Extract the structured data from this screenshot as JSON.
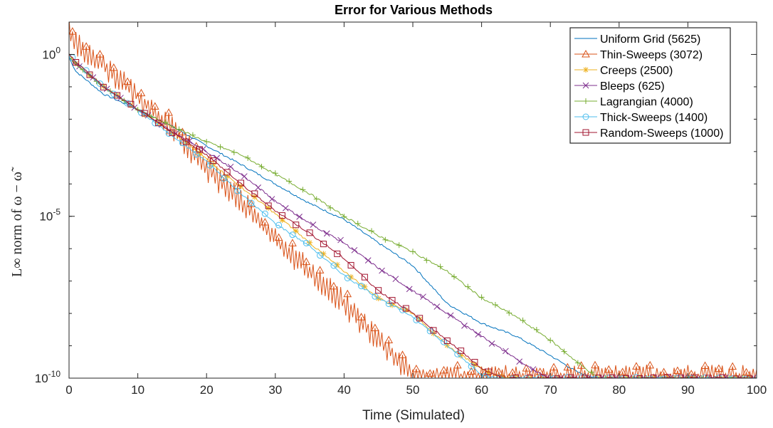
{
  "chart_data": {
    "type": "line",
    "title": "Error for Various Methods",
    "xlabel": "Time (Simulated)",
    "ylabel": "L∞ norm of ω − ω̃",
    "xlim": [
      0,
      100
    ],
    "ylim": [
      1e-10,
      10
    ],
    "yscale": "log",
    "xticks": [
      "0",
      "10",
      "20",
      "30",
      "40",
      "50",
      "60",
      "70",
      "80",
      "90",
      "100"
    ],
    "yticks": [
      {
        "value": 1,
        "base": "10",
        "exp": "0"
      },
      {
        "value": 1e-05,
        "base": "10",
        "exp": "-5"
      },
      {
        "value": 1e-10,
        "base": "10",
        "exp": "-10"
      }
    ],
    "grid": false,
    "legend_position": "top-right",
    "series": [
      {
        "name": "Uniform Grid (5625)",
        "color": "#0072BD",
        "marker": "none",
        "x": [
          0,
          1,
          5,
          10,
          15,
          20,
          25,
          30,
          35,
          40,
          45,
          50,
          55,
          60,
          65,
          70,
          74,
          77,
          80,
          100
        ],
        "y": [
          0.8,
          0.3,
          0.06,
          0.02,
          0.006,
          0.0015,
          0.0004,
          0.0001,
          2.5e-05,
          8e-06,
          1.5e-06,
          3e-07,
          2e-08,
          5e-09,
          2e-09,
          5e-10,
          1.5e-10,
          1e-10,
          1e-10,
          1e-10
        ]
      },
      {
        "name": "Thin-Sweeps (3072)",
        "color": "#D95319",
        "marker": "triangle",
        "noise": 0.3,
        "x": [
          0,
          1,
          5,
          10,
          15,
          20,
          25,
          30,
          35,
          40,
          45,
          50,
          52,
          55,
          60,
          100
        ],
        "y": [
          5,
          2,
          0.5,
          0.05,
          0.005,
          0.0003,
          3e-05,
          2e-06,
          2e-07,
          2e-08,
          1.5e-09,
          1.3e-10,
          1e-10,
          1e-10,
          1e-10,
          1e-10
        ]
      },
      {
        "name": "Creeps (2500)",
        "color": "#EDB120",
        "marker": "asterisk",
        "x": [
          0,
          1,
          5,
          10,
          15,
          20,
          25,
          30,
          35,
          40,
          45,
          50,
          55,
          60,
          62,
          65,
          100
        ],
        "y": [
          1,
          0.5,
          0.1,
          0.02,
          0.004,
          0.0006,
          8e-05,
          1.2e-05,
          1.5e-06,
          2e-07,
          3e-08,
          1e-08,
          1e-09,
          2e-10,
          1.2e-10,
          1e-10,
          1e-10
        ]
      },
      {
        "name": "Bleeps (625)",
        "color": "#7E2F8E",
        "marker": "x",
        "x": [
          0,
          1,
          5,
          10,
          15,
          20,
          25,
          30,
          35,
          40,
          45,
          50,
          55,
          60,
          65,
          68,
          70,
          100
        ],
        "y": [
          0.8,
          0.5,
          0.1,
          0.02,
          0.004,
          0.001,
          0.0002,
          3e-05,
          6e-06,
          1.5e-06,
          2.5e-07,
          5e-08,
          1e-08,
          2e-09,
          4e-10,
          1.5e-10,
          1e-10,
          1e-10
        ]
      },
      {
        "name": "Lagrangian (4000)",
        "color": "#77AC30",
        "marker": "plus",
        "x": [
          0,
          1,
          5,
          10,
          15,
          20,
          25,
          30,
          35,
          40,
          45,
          50,
          55,
          60,
          65,
          70,
          74,
          77,
          100
        ],
        "y": [
          0.8,
          0.5,
          0.1,
          0.02,
          0.006,
          0.002,
          0.0008,
          0.0002,
          5e-05,
          1e-05,
          2.5e-06,
          8e-07,
          2e-07,
          3e-08,
          8e-09,
          1.5e-09,
          3e-10,
          1e-10,
          1e-10
        ]
      },
      {
        "name": "Thick-Sweeps (1400)",
        "color": "#4DBEEE",
        "marker": "circle",
        "x": [
          0,
          1,
          5,
          10,
          15,
          20,
          25,
          30,
          35,
          40,
          45,
          50,
          55,
          58,
          60,
          62,
          100
        ],
        "y": [
          1,
          0.6,
          0.1,
          0.02,
          0.003,
          0.0005,
          5e-05,
          6e-06,
          1.2e-06,
          1.5e-07,
          3e-08,
          8e-09,
          1e-09,
          3e-10,
          1.3e-10,
          1e-10,
          1e-10
        ]
      },
      {
        "name": "Random-Sweeps (1000)",
        "color": "#A2142F",
        "marker": "square",
        "x": [
          0,
          1,
          5,
          10,
          15,
          20,
          25,
          30,
          35,
          40,
          45,
          50,
          55,
          60,
          63,
          100
        ],
        "y": [
          1,
          0.6,
          0.1,
          0.02,
          0.004,
          0.0008,
          0.0001,
          1.5e-05,
          3e-06,
          5e-07,
          5e-08,
          1e-08,
          1.5e-09,
          2e-10,
          1e-10,
          1e-10
        ]
      }
    ]
  }
}
